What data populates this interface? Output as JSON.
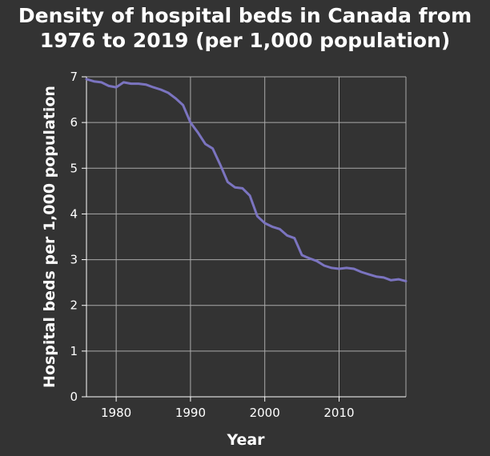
{
  "chart_data": {
    "type": "line",
    "title_line1": "Density of hospital beds in Canada from",
    "title_line2": "1976 to 2019 (per 1,000 population)",
    "xlabel": "Year",
    "ylabel": "Hospital beds per 1,000 population",
    "xlim": [
      1976,
      2019
    ],
    "ylim": [
      0,
      7
    ],
    "xticks": [
      1980,
      1990,
      2000,
      2010
    ],
    "yticks": [
      0,
      1,
      2,
      3,
      4,
      5,
      6,
      7
    ],
    "grid": true,
    "colors": {
      "background": "#333333",
      "line": "#7b74c0",
      "grid": "#aaaaaa",
      "text": "#ffffff"
    },
    "series": [
      {
        "x": [
          1976,
          1977,
          1978,
          1979,
          1980,
          1981,
          1982,
          1983,
          1984,
          1985,
          1986,
          1987,
          1988,
          1989,
          1990,
          1991,
          1992,
          1993,
          1994,
          1995,
          1996,
          1997,
          1998,
          1999,
          2000,
          2001,
          2002,
          2003,
          2004,
          2005,
          2006,
          2007,
          2008,
          2009,
          2010,
          2011,
          2012,
          2013,
          2014,
          2015,
          2016,
          2017,
          2018,
          2019
        ],
        "y": [
          6.95,
          6.9,
          6.88,
          6.8,
          6.77,
          6.88,
          6.85,
          6.85,
          6.83,
          6.77,
          6.72,
          6.65,
          6.53,
          6.38,
          6.0,
          5.78,
          5.53,
          5.43,
          5.08,
          4.7,
          4.58,
          4.56,
          4.4,
          3.95,
          3.8,
          3.72,
          3.67,
          3.53,
          3.47,
          3.1,
          3.03,
          2.97,
          2.87,
          2.82,
          2.8,
          2.82,
          2.8,
          2.73,
          2.68,
          2.63,
          2.61,
          2.55,
          2.57,
          2.53
        ]
      }
    ]
  }
}
